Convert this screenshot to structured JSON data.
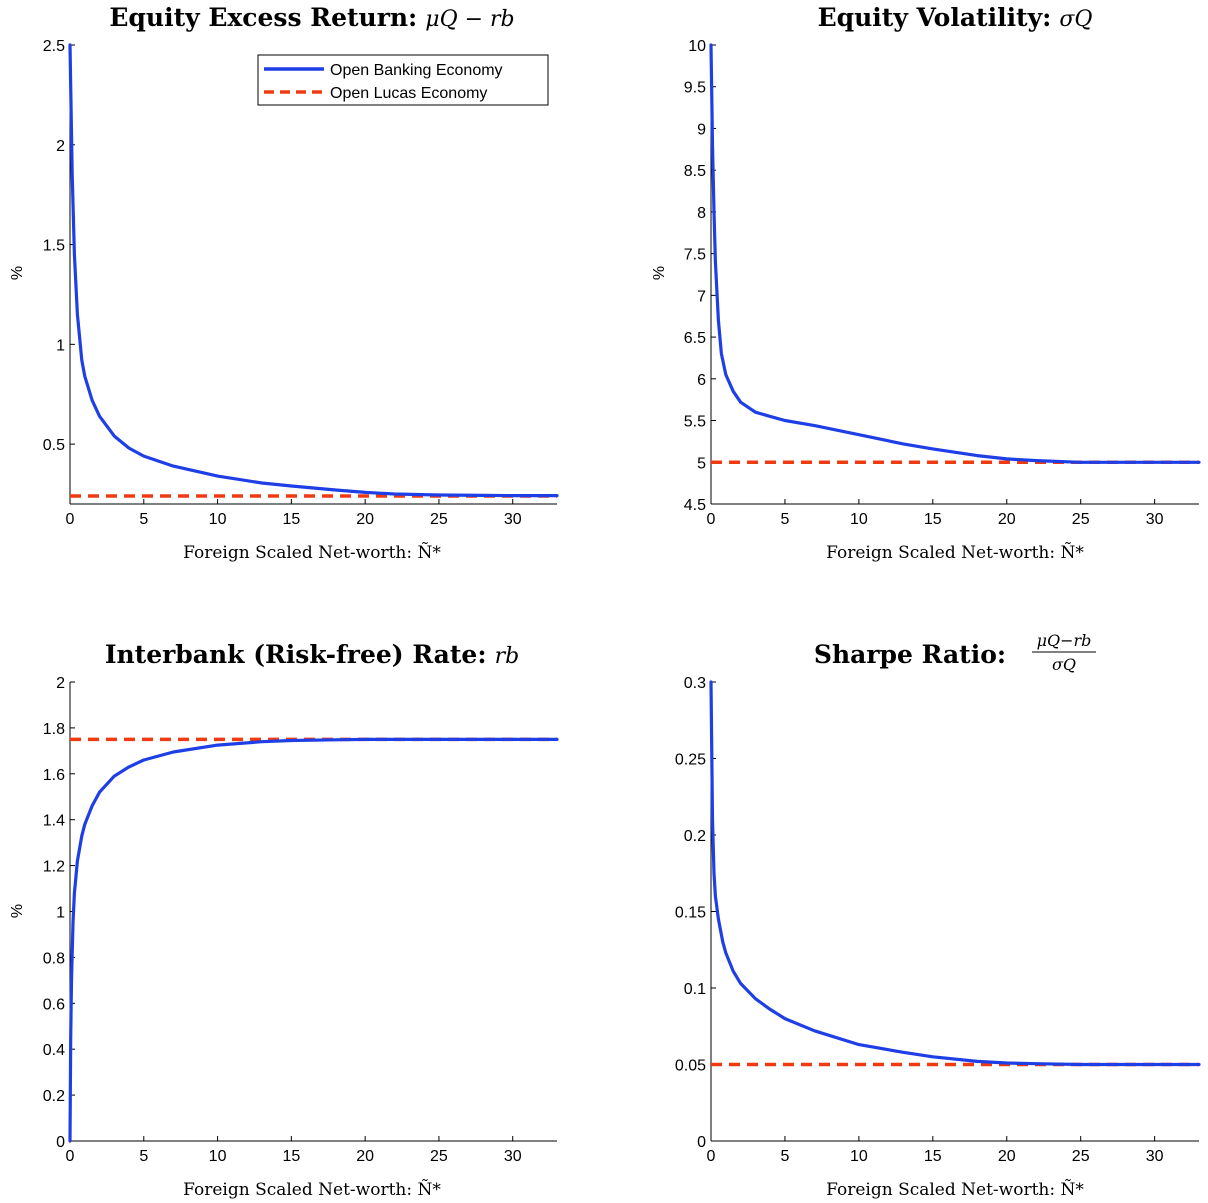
{
  "colors": {
    "banking": "#1f3fe6",
    "lucas": "#f03a12"
  },
  "chart_data": [
    {
      "type": "line",
      "title": "Equity Excess Return: μQ − rb",
      "title_text": "Equity Excess Return:",
      "title_math": "μQ − rb",
      "xlabel": "Foreign Scaled Net-worth: Ñ*",
      "ylabel": "%",
      "xlim": [
        0,
        33
      ],
      "ylim": [
        0.2,
        2.5
      ],
      "xticks": [
        0,
        5,
        10,
        15,
        20,
        25,
        30
      ],
      "yticks": [
        0.5,
        1,
        1.5,
        2,
        2.5
      ],
      "ytick_labels": [
        "0.5",
        "1",
        "1.5",
        "2",
        "2.5"
      ],
      "legend": {
        "position": "top-right",
        "entries": [
          "Open Banking Economy",
          "Open Lucas Economy"
        ]
      },
      "series": [
        {
          "name": "Open Banking Economy",
          "style": "solid",
          "x": [
            0,
            0.15,
            0.3,
            0.5,
            0.8,
            1,
            1.5,
            2,
            3,
            4,
            5,
            7,
            10,
            13,
            15,
            18,
            20,
            22,
            25,
            28,
            30,
            33
          ],
          "y": [
            2.5,
            1.85,
            1.45,
            1.15,
            0.92,
            0.84,
            0.72,
            0.64,
            0.54,
            0.48,
            0.44,
            0.39,
            0.34,
            0.305,
            0.29,
            0.27,
            0.258,
            0.25,
            0.245,
            0.243,
            0.242,
            0.242
          ]
        },
        {
          "name": "Open Lucas Economy",
          "style": "dashed",
          "x": [
            0,
            33
          ],
          "y": [
            0.24,
            0.24
          ]
        }
      ]
    },
    {
      "type": "line",
      "title": "Equity Volatility: σQ",
      "title_text": "Equity Volatility:",
      "title_math": "σQ",
      "xlabel": "Foreign Scaled Net-worth: Ñ*",
      "ylabel": "%",
      "xlim": [
        0,
        33
      ],
      "ylim": [
        4.5,
        10
      ],
      "xticks": [
        0,
        5,
        10,
        15,
        20,
        25,
        30
      ],
      "yticks": [
        4.5,
        5,
        5.5,
        6,
        6.5,
        7,
        7.5,
        8,
        8.5,
        9,
        9.5,
        10
      ],
      "ytick_labels": [
        "4.5",
        "5",
        "5.5",
        "6",
        "6.5",
        "7",
        "7.5",
        "8",
        "8.5",
        "9",
        "9.5",
        "10"
      ],
      "series": [
        {
          "name": "Open Banking Economy",
          "style": "solid",
          "x": [
            0,
            0.1,
            0.2,
            0.3,
            0.5,
            0.7,
            1,
            1.5,
            2,
            3,
            4,
            5,
            7,
            10,
            13,
            15,
            18,
            20,
            22,
            25,
            28,
            30,
            33
          ],
          "y": [
            10,
            8.8,
            8.0,
            7.4,
            6.7,
            6.3,
            6.05,
            5.85,
            5.72,
            5.6,
            5.55,
            5.5,
            5.44,
            5.33,
            5.22,
            5.16,
            5.08,
            5.04,
            5.02,
            5.0,
            5.0,
            5.0,
            5.0
          ]
        },
        {
          "name": "Open Lucas Economy",
          "style": "dashed",
          "x": [
            0,
            33
          ],
          "y": [
            5,
            5
          ]
        }
      ]
    },
    {
      "type": "line",
      "title": "Interbank (Risk-free) Rate: rb",
      "title_text": "Interbank (Risk-free) Rate:",
      "title_math": "rb",
      "xlabel": "Foreign Scaled Net-worth: Ñ*",
      "ylabel": "%",
      "xlim": [
        0,
        33
      ],
      "ylim": [
        0,
        2
      ],
      "xticks": [
        0,
        5,
        10,
        15,
        20,
        25,
        30
      ],
      "yticks": [
        0,
        0.2,
        0.4,
        0.6,
        0.8,
        1,
        1.2,
        1.4,
        1.6,
        1.8,
        2
      ],
      "ytick_labels": [
        "0",
        "0.2",
        "0.4",
        "0.6",
        "0.8",
        "1",
        "1.2",
        "1.4",
        "1.6",
        "1.8",
        "2"
      ],
      "series": [
        {
          "name": "Open Banking Economy",
          "style": "solid",
          "x": [
            0,
            0.05,
            0.1,
            0.2,
            0.3,
            0.5,
            0.8,
            1,
            1.5,
            2,
            3,
            4,
            5,
            7,
            10,
            13,
            15,
            18,
            20,
            25,
            30,
            33
          ],
          "y": [
            0,
            0.45,
            0.7,
            0.95,
            1.08,
            1.22,
            1.33,
            1.38,
            1.46,
            1.52,
            1.59,
            1.63,
            1.66,
            1.695,
            1.725,
            1.74,
            1.745,
            1.748,
            1.75,
            1.75,
            1.75,
            1.75
          ]
        },
        {
          "name": "Open Lucas Economy",
          "style": "dashed",
          "x": [
            0,
            33
          ],
          "y": [
            1.75,
            1.75
          ]
        }
      ]
    },
    {
      "type": "line",
      "title": "Sharpe Ratio: (μQ − rb)/σQ",
      "title_text": "Sharpe Ratio:",
      "title_frac_num": "μQ−rb",
      "title_frac_den": "σQ",
      "xlabel": "Foreign Scaled Net-worth: Ñ*",
      "ylabel": "",
      "xlim": [
        0,
        33
      ],
      "ylim": [
        0,
        0.3
      ],
      "xticks": [
        0,
        5,
        10,
        15,
        20,
        25,
        30
      ],
      "yticks": [
        0,
        0.05,
        0.1,
        0.15,
        0.2,
        0.25,
        0.3
      ],
      "ytick_labels": [
        "0",
        "0.05",
        "0.1",
        "0.15",
        "0.2",
        "0.25",
        "0.3"
      ],
      "series": [
        {
          "name": "Open Banking Economy",
          "style": "solid",
          "x": [
            0,
            0.1,
            0.2,
            0.3,
            0.5,
            0.8,
            1,
            1.5,
            2,
            3,
            4,
            5,
            7,
            10,
            13,
            15,
            18,
            20,
            22,
            25,
            30,
            33
          ],
          "y": [
            0.3,
            0.21,
            0.175,
            0.16,
            0.145,
            0.13,
            0.123,
            0.111,
            0.103,
            0.093,
            0.086,
            0.08,
            0.072,
            0.063,
            0.058,
            0.055,
            0.052,
            0.051,
            0.0505,
            0.05,
            0.05,
            0.05
          ]
        },
        {
          "name": "Open Lucas Economy",
          "style": "dashed",
          "x": [
            0,
            33
          ],
          "y": [
            0.05,
            0.05
          ]
        }
      ]
    }
  ]
}
